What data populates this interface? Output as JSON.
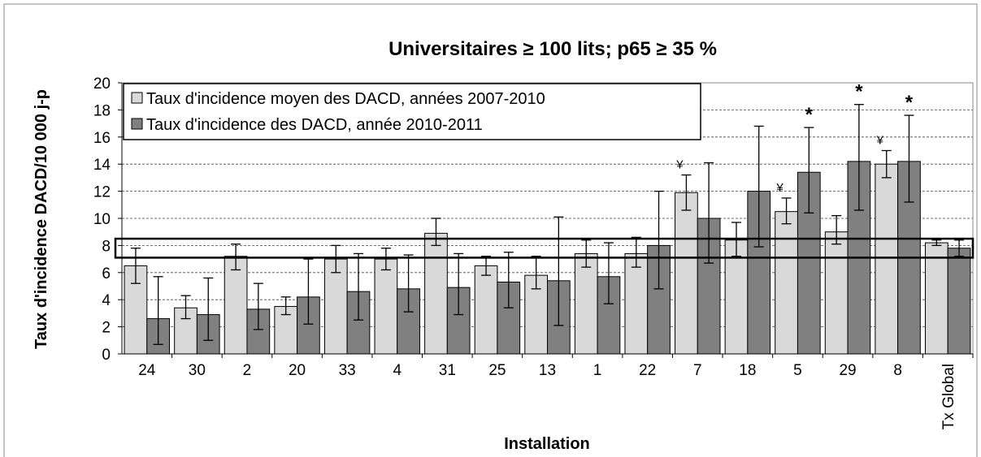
{
  "chart_data": {
    "type": "bar",
    "title": "Universitaires ≥ 100 lits; p65 ≥ 35 %",
    "y_label": "Taux d'incidence DACD/10 000 j-p",
    "x_label": "Installation",
    "categories": [
      "24",
      "30",
      "2",
      "20",
      "33",
      "4",
      "31",
      "25",
      "13",
      "1",
      "22",
      "7",
      "18",
      "5",
      "29",
      "8",
      "Tx Global"
    ],
    "series": [
      {
        "name": "Taux d'incidence moyen des DACD, années 2007-2010",
        "color": "#d9d9d9",
        "values": [
          6.5,
          3.4,
          7.2,
          3.5,
          7.0,
          7.0,
          8.9,
          6.5,
          5.8,
          7.4,
          7.4,
          11.9,
          8.4,
          10.5,
          9.0,
          14.0,
          8.2
        ],
        "errors_plus": [
          1.3,
          0.9,
          0.9,
          0.7,
          1.0,
          0.8,
          1.1,
          0.7,
          1.4,
          1.0,
          1.2,
          1.3,
          1.3,
          1.0,
          1.2,
          1.0,
          0.2
        ],
        "errors_minus": [
          1.3,
          0.8,
          1.0,
          0.6,
          1.0,
          0.8,
          0.9,
          0.7,
          1.0,
          1.0,
          1.0,
          1.3,
          1.2,
          0.9,
          0.9,
          1.0,
          0.2
        ],
        "marker_labels": [
          null,
          null,
          null,
          null,
          null,
          null,
          null,
          null,
          null,
          null,
          null,
          "¥",
          null,
          "¥",
          null,
          "¥",
          null
        ]
      },
      {
        "name": "Taux d'incidence des DACD, année 2010-2011",
        "color": "#808080",
        "values": [
          2.6,
          2.9,
          3.3,
          4.2,
          4.6,
          4.8,
          4.9,
          5.3,
          5.4,
          5.7,
          8.0,
          10.0,
          12.0,
          13.4,
          14.2,
          14.2,
          7.8
        ],
        "errors_plus": [
          3.1,
          2.7,
          1.9,
          2.8,
          2.8,
          2.5,
          2.5,
          2.2,
          4.7,
          2.5,
          4.0,
          4.1,
          4.8,
          3.3,
          4.2,
          3.4,
          0.6
        ],
        "errors_minus": [
          1.9,
          1.9,
          1.5,
          2.0,
          2.1,
          1.7,
          2.0,
          1.9,
          3.3,
          2.0,
          3.2,
          3.3,
          4.1,
          3.0,
          3.6,
          3.0,
          0.6
        ],
        "marker_labels": [
          null,
          null,
          null,
          null,
          null,
          null,
          null,
          null,
          null,
          null,
          null,
          null,
          null,
          "*",
          "*",
          "*",
          null
        ]
      }
    ],
    "reference_band": [
      7.1,
      8.5
    ],
    "ylim": [
      0,
      20
    ],
    "yticks": [
      0,
      2,
      4,
      6,
      8,
      10,
      12,
      14,
      16,
      18,
      20
    ],
    "grid": true,
    "legend": "top-left"
  }
}
